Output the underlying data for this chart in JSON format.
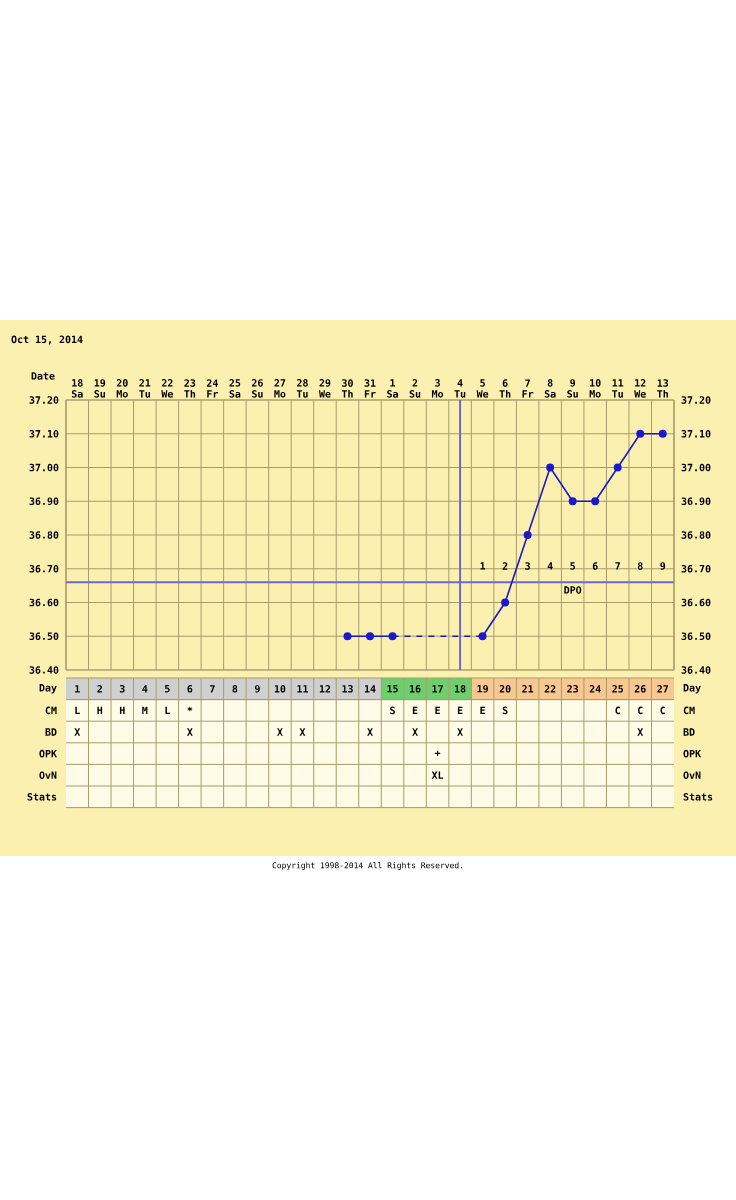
{
  "chart_data": [
    {
      "type": "line",
      "title": "Oct 15, 2014",
      "xlabel": "Date",
      "categories": [
        "18 Sa",
        "19 Su",
        "20 Mo",
        "21 Tu",
        "22 We",
        "23 Th",
        "24 Fr",
        "25 Sa",
        "26 Su",
        "27 Mo",
        "28 Tu",
        "29 We",
        "30 Th",
        "31 Fr",
        "1 Sa",
        "2 Su",
        "3 Mo",
        "4 Tu",
        "5 We",
        "6 Th",
        "7 Fr",
        "8 Sa",
        "9 Su",
        "10 Mo",
        "11 Tu",
        "12 We",
        "13 Th"
      ],
      "series": [
        {
          "color": "#1a1acc",
          "values": [
            null,
            null,
            null,
            null,
            null,
            null,
            null,
            null,
            null,
            null,
            null,
            null,
            36.5,
            36.5,
            36.5,
            null,
            null,
            null,
            36.5,
            36.6,
            36.8,
            37.0,
            36.9,
            36.9,
            37.0,
            37.1,
            37.1
          ]
        }
      ],
      "ylim": [
        36.4,
        37.2
      ],
      "yticks": [
        {
          "value": 36.4,
          "label": "36.40"
        },
        {
          "value": 36.5,
          "label": "36.50"
        },
        {
          "value": 36.6,
          "label": "36.60"
        },
        {
          "value": 36.7,
          "label": "36.70"
        },
        {
          "value": 36.8,
          "label": "36.80"
        },
        {
          "value": 36.9,
          "label": "36.90"
        },
        {
          "value": 37.0,
          "label": "37.00"
        },
        {
          "value": 37.1,
          "label": "37.10"
        },
        {
          "value": 37.2,
          "label": "37.20"
        }
      ],
      "y2lim": [
        36.4,
        37.2
      ],
      "y2ticks": [
        {
          "value": 36.4,
          "label": "36.40"
        },
        {
          "value": 36.5,
          "label": "36.50"
        },
        {
          "value": 36.6,
          "label": "36.60"
        },
        {
          "value": 36.7,
          "label": "36.70"
        },
        {
          "value": 36.8,
          "label": "36.80"
        },
        {
          "value": 36.9,
          "label": "36.90"
        },
        {
          "value": 37.0,
          "label": "37.00"
        },
        {
          "value": 37.1,
          "label": "37.10"
        },
        {
          "value": 37.2,
          "label": "37.20"
        }
      ],
      "ref_lines": [
        {
          "axis": "y",
          "value": 36.66,
          "color": "#6a6acc"
        },
        {
          "axis": "x",
          "value": "4 Tu",
          "color": "#6a6acc"
        }
      ],
      "annotations": [
        "1",
        "2",
        "3",
        "4",
        "5",
        "6",
        "7",
        "8",
        "9",
        "DPO",
        "Copyright 1998-2014 All Rights Reserved."
      ],
      "x2lim": [
        0.5,
        27.5
      ],
      "x2ticks": [
        1,
        2,
        3,
        4,
        5,
        6,
        7,
        8,
        9,
        10,
        11,
        12,
        13,
        14,
        15,
        16,
        17,
        18,
        19,
        20,
        21,
        22,
        23,
        24,
        25,
        26,
        27
      ],
      "x2label": "Day",
      "grid": true,
      "marker": "circle",
      "line_style": "solid"
    },
    {
      "type": "other",
      "y_categories": [
        "CM",
        "BD",
        "OPK",
        "OvN",
        "Stats"
      ],
      "y2_categories": [
        "CM",
        "BD",
        "OPK",
        "OvN",
        "Stats"
      ],
      "colors": [
        "#cfcfcf",
        "#cfcfcf",
        "#cfcfcf",
        "#cfcfcf",
        "#cfcfcf",
        "#cfcfcf",
        "#cfcfcf",
        "#cfcfcf",
        "#cfcfcf",
        "#cfcfcf",
        "#cfcfcf",
        "#cfcfcf",
        "#cfcfcf",
        "#cfcfcf",
        "#6fcf6f",
        "#6fcf6f",
        "#6fcf6f",
        "#6fcf6f",
        "#f8c890",
        "#f8c890",
        "#f8c890",
        "#f8c890",
        "#f8c890",
        "#f8c890",
        "#f8c890",
        "#f8c890",
        "#f8c890"
      ],
      "cell_labels": [
        [
          "L",
          "H",
          "H",
          "M",
          "L",
          "*",
          null,
          null,
          null,
          null,
          null,
          null,
          null,
          null,
          "S",
          "E",
          "E",
          "E",
          "E",
          "S",
          null,
          null,
          null,
          null,
          "C",
          "C",
          "C"
        ],
        [
          "X",
          null,
          null,
          null,
          null,
          "X",
          null,
          null,
          null,
          "X",
          "X",
          null,
          null,
          "X",
          null,
          "X",
          null,
          "X",
          null,
          null,
          null,
          null,
          null,
          null,
          null,
          "X",
          null
        ],
        [
          null,
          null,
          null,
          null,
          null,
          null,
          null,
          null,
          null,
          null,
          null,
          null,
          null,
          null,
          null,
          null,
          "+",
          null,
          null,
          null,
          null,
          null,
          null,
          null,
          null,
          null,
          null
        ],
        [
          null,
          null,
          null,
          null,
          null,
          null,
          null,
          null,
          null,
          null,
          null,
          null,
          null,
          null,
          null,
          null,
          "XL",
          null,
          null,
          null,
          null,
          null,
          null,
          null,
          null,
          null,
          null
        ],
        [
          null,
          null,
          null,
          null,
          null,
          null,
          null,
          null,
          null,
          null,
          null,
          null,
          null,
          null,
          null,
          null,
          null,
          null,
          null,
          null,
          null,
          null,
          null,
          null,
          null,
          null,
          null
        ]
      ]
    }
  ]
}
